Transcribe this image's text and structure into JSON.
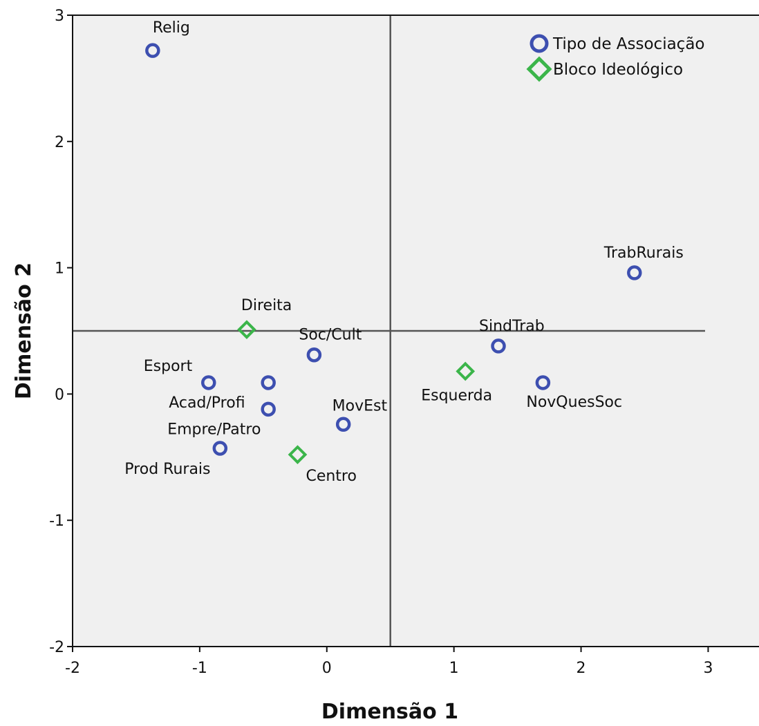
{
  "chart_data": {
    "type": "scatter",
    "xlabel": "Dimensão 1",
    "ylabel": "Dimensão 2",
    "xlim": [
      -2,
      3.4
    ],
    "ylim": [
      -2,
      3
    ],
    "x_ticks": [
      -2,
      -1,
      0,
      1,
      2,
      3
    ],
    "y_ticks": [
      -2,
      -1,
      0,
      1,
      2,
      3
    ],
    "reference_lines": {
      "x": 0.5,
      "y": 0.5
    },
    "legend_placement": "top-right",
    "grid": false,
    "series": [
      {
        "name": "Tipo de Associação",
        "marker": "circle",
        "color": "#3d4fb0",
        "points": [
          {
            "label": "Relig",
            "x": -1.37,
            "y": 2.72
          },
          {
            "label": "TrabRurais",
            "x": 2.42,
            "y": 0.96
          },
          {
            "label": "SindTrab",
            "x": 1.35,
            "y": 0.38
          },
          {
            "label": "Soc/Cult",
            "x": -0.1,
            "y": 0.31
          },
          {
            "label": "Esport",
            "x": -0.93,
            "y": 0.09
          },
          {
            "label": "Acad/Profi",
            "x": -0.46,
            "y": 0.09
          },
          {
            "label": "NovQuesSoc",
            "x": 1.7,
            "y": 0.09
          },
          {
            "label": "Empre/Patro",
            "x": -0.46,
            "y": -0.12
          },
          {
            "label": "MovEst",
            "x": 0.13,
            "y": -0.24
          },
          {
            "label": "Prod Rurais",
            "x": -0.84,
            "y": -0.43
          }
        ]
      },
      {
        "name": "Bloco Ideológico",
        "marker": "diamond",
        "color": "#3bb54a",
        "points": [
          {
            "label": "Direita",
            "x": -0.63,
            "y": 0.51
          },
          {
            "label": "Esquerda",
            "x": 1.09,
            "y": 0.18
          },
          {
            "label": "Centro",
            "x": -0.23,
            "y": -0.48
          }
        ]
      }
    ]
  }
}
